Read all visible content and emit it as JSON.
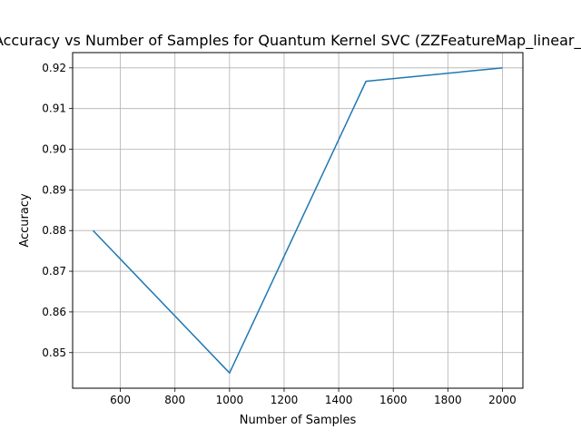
{
  "chart_data": {
    "type": "line",
    "title": "Accuracy vs Number of Samples for Quantum Kernel SVC (ZZFeatureMap_linear_r",
    "xlabel": "Number of Samples",
    "ylabel": "Accuracy",
    "x": [
      500,
      1000,
      1500,
      2000
    ],
    "series": [
      {
        "values": [
          0.88,
          0.845,
          0.9167,
          0.92
        ],
        "color": "#1f77b4"
      }
    ],
    "xlim": [
      425,
      2075
    ],
    "ylim": [
      0.84125,
      0.92375
    ],
    "xticks": [
      600,
      800,
      1000,
      1200,
      1400,
      1600,
      1800,
      2000
    ],
    "yticks": [
      0.85,
      0.86,
      0.87,
      0.88,
      0.89,
      0.9,
      0.91,
      0.92
    ],
    "grid": true,
    "legend": "none"
  }
}
